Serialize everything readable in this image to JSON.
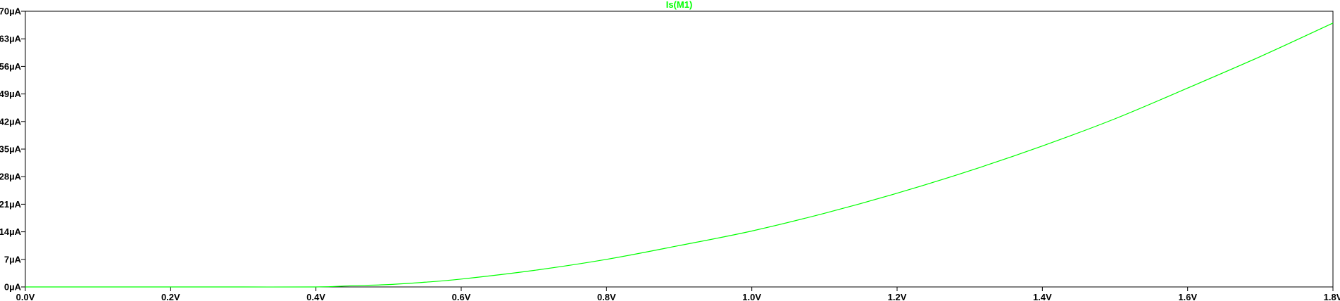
{
  "colors": {
    "background": "#ffffff",
    "axis": "#000000",
    "trace": "#00ff00"
  },
  "chart_data": {
    "type": "line",
    "title": "",
    "xlabel": "",
    "ylabel": "",
    "xlim": [
      0.0,
      1.8
    ],
    "ylim": [
      0,
      70
    ],
    "x_unit": "V",
    "y_unit": "µA",
    "grid": false,
    "x_ticks": [
      0.0,
      0.2,
      0.4,
      0.6,
      0.8,
      1.0,
      1.2,
      1.4,
      1.6,
      1.8
    ],
    "x_tick_labels": [
      "0.0V",
      "0.2V",
      "0.4V",
      "0.6V",
      "0.8V",
      "1.0V",
      "1.2V",
      "1.4V",
      "1.6V",
      "1.8V"
    ],
    "y_ticks": [
      0,
      7,
      14,
      21,
      28,
      35,
      42,
      49,
      56,
      63,
      70
    ],
    "y_tick_labels": [
      "0µA",
      "7µA",
      "14µA",
      "21µA",
      "28µA",
      "35µA",
      "42µA",
      "49µA",
      "56µA",
      "63µA",
      "70µA"
    ],
    "series": [
      {
        "name": "Is(M1)",
        "color": "#00ff00",
        "x": [
          0.0,
          0.1,
          0.2,
          0.3,
          0.4,
          0.45,
          0.5,
          0.55,
          0.6,
          0.7,
          0.8,
          0.9,
          1.0,
          1.1,
          1.2,
          1.3,
          1.4,
          1.5,
          1.6,
          1.7,
          1.8
        ],
        "y": [
          0.0,
          0.0,
          0.0,
          0.0,
          0.0,
          0.3,
          0.6,
          1.2,
          2.0,
          4.2,
          7.0,
          10.5,
          14.2,
          18.7,
          23.8,
          29.5,
          35.8,
          42.7,
          50.5,
          58.5,
          67.0
        ]
      }
    ]
  }
}
